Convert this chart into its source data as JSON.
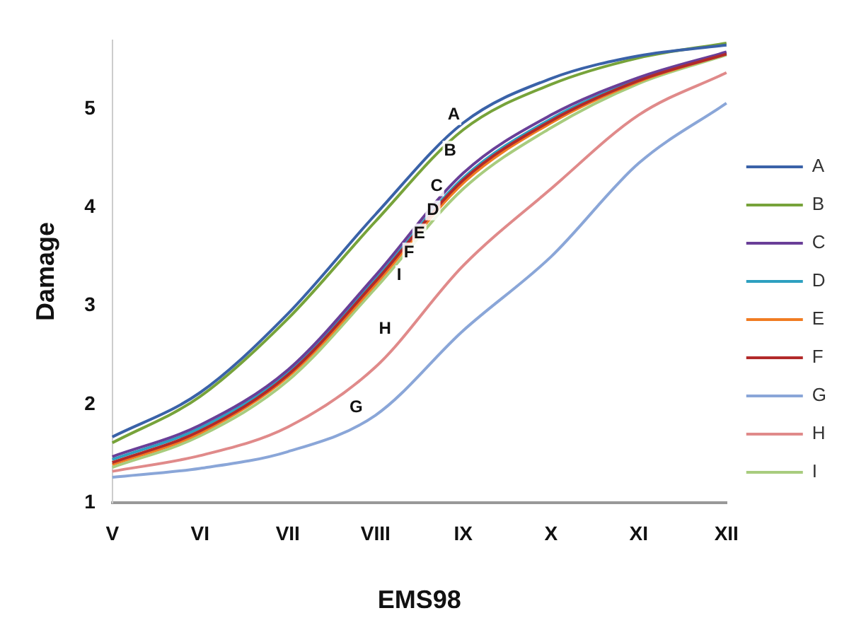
{
  "chart_data": {
    "type": "line",
    "xlabel": "EMS98",
    "ylabel": "Damage",
    "categories": [
      "V",
      "VI",
      "VII",
      "VIII",
      "IX",
      "X",
      "XI",
      "XII"
    ],
    "series": [
      {
        "name": "A",
        "color": "#3a62a8",
        "values": [
          1.67,
          2.12,
          2.92,
          3.93,
          4.86,
          5.31,
          5.54,
          5.65
        ]
      },
      {
        "name": "B",
        "color": "#77a33a",
        "values": [
          1.61,
          2.08,
          2.87,
          3.86,
          4.79,
          5.25,
          5.52,
          5.67
        ]
      },
      {
        "name": "C",
        "color": "#6a3f98",
        "values": [
          1.47,
          1.79,
          2.35,
          3.31,
          4.35,
          4.94,
          5.32,
          5.58
        ]
      },
      {
        "name": "D",
        "color": "#2ea0c0",
        "values": [
          1.44,
          1.76,
          2.32,
          3.27,
          4.3,
          4.9,
          5.3,
          5.57
        ]
      },
      {
        "name": "E",
        "color": "#f07c22",
        "values": [
          1.39,
          1.71,
          2.28,
          3.22,
          4.25,
          4.86,
          5.28,
          5.56
        ]
      },
      {
        "name": "F",
        "color": "#b22a2a",
        "values": [
          1.41,
          1.73,
          2.3,
          3.25,
          4.28,
          4.88,
          5.29,
          5.56
        ]
      },
      {
        "name": "G",
        "color": "#8aa6d8",
        "values": [
          1.26,
          1.35,
          1.52,
          1.89,
          2.75,
          3.5,
          4.45,
          5.06
        ]
      },
      {
        "name": "H",
        "color": "#e08a8a",
        "values": [
          1.32,
          1.48,
          1.77,
          2.38,
          3.41,
          4.19,
          4.94,
          5.37
        ]
      },
      {
        "name": "I",
        "color": "#a8cc7e",
        "values": [
          1.36,
          1.68,
          2.24,
          3.18,
          4.19,
          4.81,
          5.26,
          5.55
        ]
      }
    ],
    "ylim": [
      1,
      5.7
    ],
    "yticks": [
      1,
      2,
      3,
      4,
      5
    ],
    "annotations": [
      "A",
      "B",
      "C",
      "D",
      "E",
      "F",
      "I",
      "H",
      "G"
    ],
    "grid": false,
    "legend": "right",
    "marker": "none",
    "line_style": "solid"
  }
}
